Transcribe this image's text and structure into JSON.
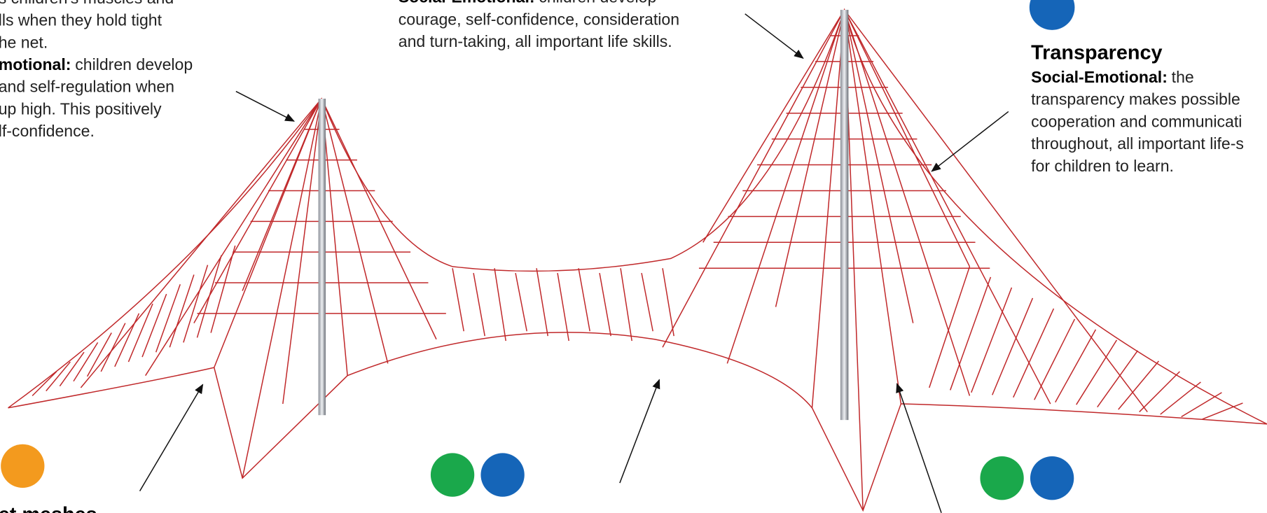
{
  "top_left": {
    "lines": [
      {
        "text": "s children's muscles and"
      },
      {
        "text": "lls when they hold tight"
      },
      {
        "text": "he net."
      },
      {
        "bold": "motional:",
        "text": "children develop"
      },
      {
        "text": "and self-regulation when"
      },
      {
        "text": "up high. This positively"
      },
      {
        "text": "lf-confidence."
      }
    ]
  },
  "top_middle": {
    "lines": [
      {
        "bold": "Social-Emotional:",
        "text": "children develop"
      },
      {
        "text": "courage, self-confidence, consideration"
      },
      {
        "text": "and turn-taking, all important life skills."
      }
    ]
  },
  "top_right": {
    "heading": "Transparency",
    "lines": [
      {
        "bold": "Social-Emotional:",
        "text": "the"
      },
      {
        "text": "transparency makes possible"
      },
      {
        "text": "cooperation and communicati"
      },
      {
        "text": "throughout, all important life-s"
      },
      {
        "text": "for children to learn."
      }
    ]
  },
  "bottom_left": {
    "heading": "et meshes"
  }
}
